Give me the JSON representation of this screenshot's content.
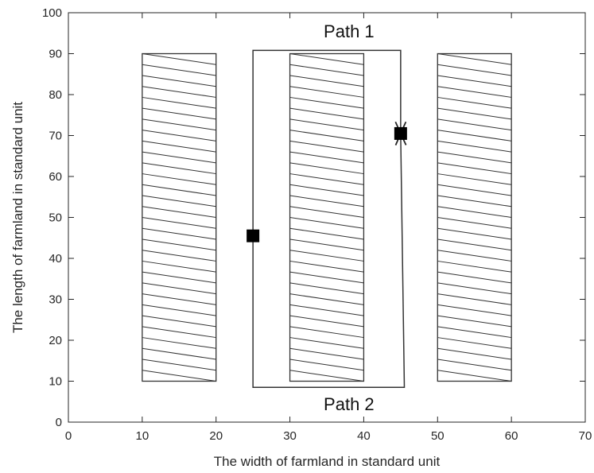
{
  "chart_data": {
    "type": "line",
    "xlabel": "The width of farmland in standard unit",
    "ylabel": "The length of farmland in standard unit",
    "xlim": [
      0,
      70
    ],
    "ylim": [
      0,
      100
    ],
    "xticks": [
      0,
      10,
      20,
      30,
      40,
      50,
      60,
      70
    ],
    "yticks": [
      0,
      10,
      20,
      30,
      40,
      50,
      60,
      70,
      80,
      90,
      100
    ],
    "grid": false,
    "fields": [
      {
        "x0": 10,
        "x1": 20,
        "y0": 10,
        "y1": 90
      },
      {
        "x0": 30,
        "x1": 40,
        "y0": 10,
        "y1": 90
      },
      {
        "x0": 50,
        "x1": 60,
        "y0": 10,
        "y1": 90
      }
    ],
    "series": [
      {
        "x": [
          25,
          25,
          45,
          45
        ],
        "y": [
          45.5,
          90.8,
          90.8,
          70.5
        ]
      },
      {
        "x": [
          25,
          25,
          45.5,
          45
        ],
        "y": [
          45.5,
          8.5,
          8.5,
          70.5
        ]
      }
    ],
    "markers": [
      {
        "x": 25,
        "y": 45.5
      },
      {
        "x": 45,
        "y": 70.5
      }
    ],
    "annotations": [
      {
        "text": "Path 1",
        "x": 38,
        "y": 95.5
      },
      {
        "text": "Path 2",
        "x": 38,
        "y": 4.5
      }
    ]
  }
}
